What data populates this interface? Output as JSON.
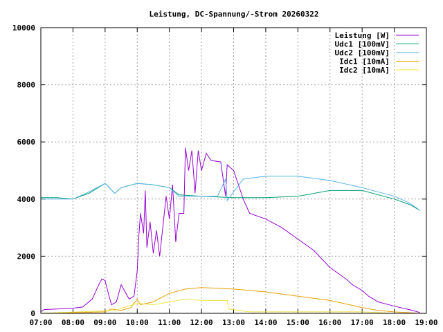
{
  "chart_data": {
    "type": "line",
    "title": "Leistung, DC-Spannung/-Strom 20260322",
    "xlabel": "",
    "ylabel": "",
    "xlim": [
      7,
      19
    ],
    "ylim": [
      0,
      10000
    ],
    "grid": true,
    "legend_placement": "top-right",
    "xticks": [
      {
        "v": 7,
        "label": "07:00"
      },
      {
        "v": 8,
        "label": "08:00"
      },
      {
        "v": 9,
        "label": "09:00"
      },
      {
        "v": 10,
        "label": "10:00"
      },
      {
        "v": 11,
        "label": "11:00"
      },
      {
        "v": 12,
        "label": "12:00"
      },
      {
        "v": 13,
        "label": "13:00"
      },
      {
        "v": 14,
        "label": "14:00"
      },
      {
        "v": 15,
        "label": "15:00"
      },
      {
        "v": 16,
        "label": "16:00"
      },
      {
        "v": 17,
        "label": "17:00"
      },
      {
        "v": 18,
        "label": "18:00"
      },
      {
        "v": 19,
        "label": "19:00"
      }
    ],
    "yticks": [
      {
        "v": 0,
        "label": "0"
      },
      {
        "v": 2000,
        "label": "2000"
      },
      {
        "v": 4000,
        "label": "4000"
      },
      {
        "v": 6000,
        "label": "6000"
      },
      {
        "v": 8000,
        "label": "8000"
      },
      {
        "v": 10000,
        "label": "10000"
      }
    ],
    "series": [
      {
        "name": "Leistung [W]",
        "color": "#9400d3",
        "x": [
          7,
          7.1,
          7.5,
          8,
          8.3,
          8.6,
          8.8,
          8.9,
          9,
          9.1,
          9.2,
          9.35,
          9.5,
          9.6,
          9.75,
          9.9,
          10,
          10.05,
          10.1,
          10.2,
          10.25,
          10.3,
          10.4,
          10.5,
          10.6,
          10.7,
          10.9,
          11,
          11.1,
          11.2,
          11.3,
          11.45,
          11.5,
          11.6,
          11.7,
          11.8,
          11.9,
          12,
          12.15,
          12.3,
          12.6,
          12.75,
          12.8,
          13,
          13.3,
          13.5,
          14,
          14.5,
          15,
          15.5,
          16,
          16.5,
          16.7,
          17,
          17.2,
          17.5,
          18,
          18.5,
          18.8
        ],
        "y": [
          50,
          130,
          150,
          180,
          220,
          500,
          1000,
          1200,
          1150,
          700,
          300,
          400,
          1000,
          800,
          500,
          600,
          1500,
          2700,
          3500,
          2800,
          4300,
          2300,
          3200,
          2100,
          2900,
          2000,
          4100,
          3300,
          4500,
          2500,
          3500,
          3500,
          5800,
          5000,
          5700,
          4200,
          5700,
          5000,
          5600,
          5350,
          5300,
          4100,
          5200,
          5000,
          4000,
          3500,
          3300,
          3000,
          2600,
          2200,
          1600,
          1200,
          1000,
          800,
          600,
          400,
          250,
          120,
          30
        ]
      },
      {
        "name": "Udc1 [100mV]",
        "color": "#009e73",
        "x": [
          7,
          7.5,
          8,
          8.5,
          9,
          9.3,
          9.5,
          10,
          10.5,
          11,
          11.3,
          12,
          13,
          14,
          15,
          16,
          17,
          18,
          18.5,
          18.8
        ],
        "y": [
          4050,
          4050,
          4000,
          4200,
          4550,
          4200,
          4400,
          4550,
          4500,
          4400,
          4150,
          4100,
          4050,
          4050,
          4100,
          4300,
          4300,
          4000,
          3800,
          3600
        ]
      },
      {
        "name": "Udc2 [100mV]",
        "color": "#56b4e9",
        "x": [
          7,
          7.5,
          8,
          8.5,
          9,
          9.3,
          9.5,
          10,
          10.5,
          11,
          11.3,
          12,
          12.5,
          12.75,
          12.8,
          13.3,
          14,
          15,
          16,
          17,
          18,
          18.5,
          18.8
        ],
        "y": [
          4000,
          4000,
          4000,
          4250,
          4550,
          4200,
          4400,
          4550,
          4500,
          4400,
          4100,
          4100,
          4100,
          4700,
          3950,
          4700,
          4800,
          4800,
          4650,
          4400,
          4100,
          3850,
          3600
        ]
      },
      {
        "name": "Idc1 [10mA]",
        "color": "#e69f00",
        "x": [
          7,
          9,
          9.2,
          9.5,
          9.8,
          10,
          10.1,
          10.5,
          11,
          11.5,
          12,
          13,
          14,
          15,
          16,
          17,
          17.5,
          18,
          18.8
        ],
        "y": [
          0,
          50,
          150,
          100,
          200,
          500,
          300,
          400,
          700,
          850,
          900,
          850,
          750,
          600,
          450,
          200,
          100,
          50,
          0
        ]
      },
      {
        "name": "Idc2 [10mA]",
        "color": "#f0e442",
        "x": [
          7,
          9.3,
          10,
          10.5,
          11,
          11.5,
          12,
          12.8,
          12.85,
          13.5,
          14,
          17,
          18,
          18.8
        ],
        "y": [
          0,
          100,
          350,
          300,
          400,
          500,
          450,
          450,
          150,
          50,
          50,
          50,
          0,
          0
        ]
      }
    ]
  }
}
